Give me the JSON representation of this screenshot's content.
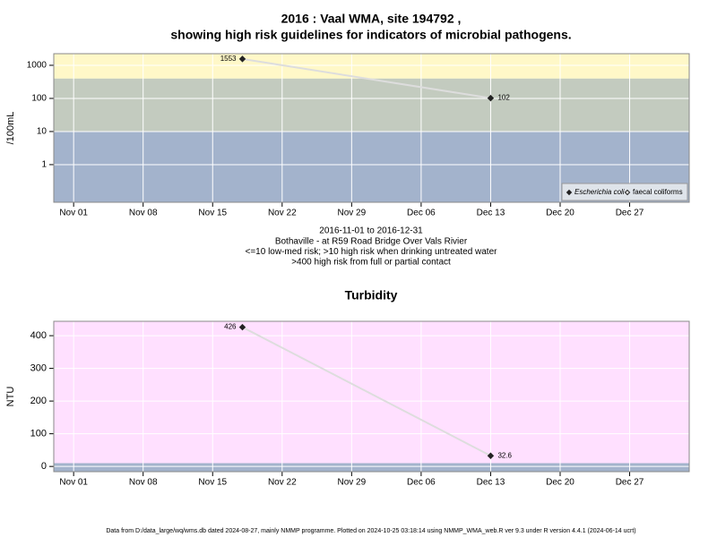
{
  "chart_data": [
    {
      "type": "line",
      "log_y": true,
      "title": [
        "2016 : Vaal WMA, site 194792 ,",
        "showing high risk guidelines for indicators of microbial pathogens."
      ],
      "ylabel": "/100mL",
      "notes": [
        "2016-11-01 to 2016-12-31",
        "Bothaville - at R59 Road Bridge Over Vals Rivier",
        "<=10 low-med risk; >10 high risk when drinking untreated water",
        ">400 high risk from full or partial contact"
      ],
      "x": [
        "2016-11-18",
        "2016-12-13"
      ],
      "series": [
        {
          "name": "Escherichia coli",
          "marker": "filled",
          "color": "#222222",
          "values": [
            1553,
            102
          ]
        },
        {
          "name": "faecal coliforms",
          "marker": "open",
          "color": "#222222",
          "values": [
            null,
            null
          ]
        }
      ],
      "line_color": "#dddddd",
      "xlim": [
        "2016-10-30",
        "2017-01-02"
      ],
      "xticks": [
        {
          "value": "2016-11-01",
          "label": "Nov 01"
        },
        {
          "value": "2016-11-08",
          "label": "Nov 08"
        },
        {
          "value": "2016-11-15",
          "label": "Nov 15"
        },
        {
          "value": "2016-11-22",
          "label": "Nov 22"
        },
        {
          "value": "2016-11-29",
          "label": "Nov 29"
        },
        {
          "value": "2016-12-06",
          "label": "Dec 06"
        },
        {
          "value": "2016-12-13",
          "label": "Dec 13"
        },
        {
          "value": "2016-12-20",
          "label": "Dec 20"
        },
        {
          "value": "2016-12-27",
          "label": "Dec 27"
        }
      ],
      "ylim": [
        0.073,
        2240
      ],
      "yticks": [
        1,
        10,
        100,
        1000
      ],
      "bands": [
        {
          "max": 10,
          "color": "#a3b3cc"
        },
        {
          "max": 400,
          "color": "#c3cbbf"
        },
        {
          "color": "#fff8c8"
        }
      ],
      "grid": true,
      "legend": "bottom-right"
    },
    {
      "type": "line",
      "log_y": false,
      "title": [
        "Turbidity"
      ],
      "ylabel": "NTU",
      "x": [
        "2016-11-18",
        "2016-12-13"
      ],
      "series": [
        {
          "marker": "filled",
          "color": "#222222",
          "values": [
            426,
            32.6
          ]
        }
      ],
      "line_color": "#dddddd",
      "xlim": [
        "2016-10-30",
        "2017-01-02"
      ],
      "xticks": [
        {
          "value": "2016-11-01",
          "label": "Nov 01"
        },
        {
          "value": "2016-11-08",
          "label": "Nov 08"
        },
        {
          "value": "2016-11-15",
          "label": "Nov 15"
        },
        {
          "value": "2016-11-22",
          "label": "Nov 22"
        },
        {
          "value": "2016-11-29",
          "label": "Nov 29"
        },
        {
          "value": "2016-12-06",
          "label": "Dec 06"
        },
        {
          "value": "2016-12-13",
          "label": "Dec 13"
        },
        {
          "value": "2016-12-20",
          "label": "Dec 20"
        },
        {
          "value": "2016-12-27",
          "label": "Dec 27"
        }
      ],
      "ylim": [
        -16,
        444
      ],
      "yticks": [
        0,
        100,
        200,
        300,
        400
      ],
      "bands": [
        {
          "max": 10,
          "color": "#a3b3cc"
        },
        {
          "color": "#ffe0ff"
        }
      ],
      "grid": true
    }
  ],
  "footer": "Data from D:/data_large/wq/wms.db dated 2024-08-27, mainly NMMP programme. Plotted on 2024-10-25 03:18:14 using NMMP_WMA_web.R ver 9.3 under R version 4.4.1 (2024-06-14 ucrt)"
}
